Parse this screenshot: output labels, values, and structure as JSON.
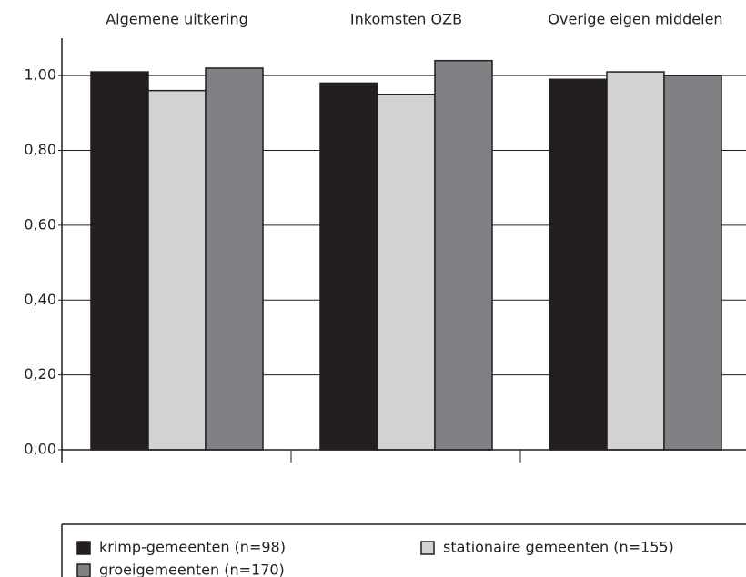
{
  "chart_data": {
    "type": "bar",
    "categories": [
      "Algemene uitkering",
      "Inkomsten OZB",
      "Overige eigen middelen"
    ],
    "series": [
      {
        "name": "krimp-gemeenten (n=98)",
        "color": "#231f20",
        "values": [
          1.01,
          0.98,
          0.99
        ]
      },
      {
        "name": "stationaire gemeenten (n=155)",
        "color": "#d1d2d4",
        "values": [
          0.96,
          0.95,
          1.01
        ]
      },
      {
        "name": "groeigemeenten (n=170)",
        "color": "#808184",
        "values": [
          1.02,
          1.04,
          1.0
        ]
      }
    ],
    "ylim": [
      0,
      1.1
    ],
    "yticks": [
      {
        "value": 0,
        "label": "0,00"
      },
      {
        "value": 0.2,
        "label": "0,20"
      },
      {
        "value": 0.4,
        "label": "0,40"
      },
      {
        "value": 0.6,
        "label": "0,60"
      },
      {
        "value": 0.8,
        "label": "0,80"
      },
      {
        "value": 1,
        "label": "1,00"
      }
    ],
    "grid": true,
    "legend": "bottom"
  }
}
